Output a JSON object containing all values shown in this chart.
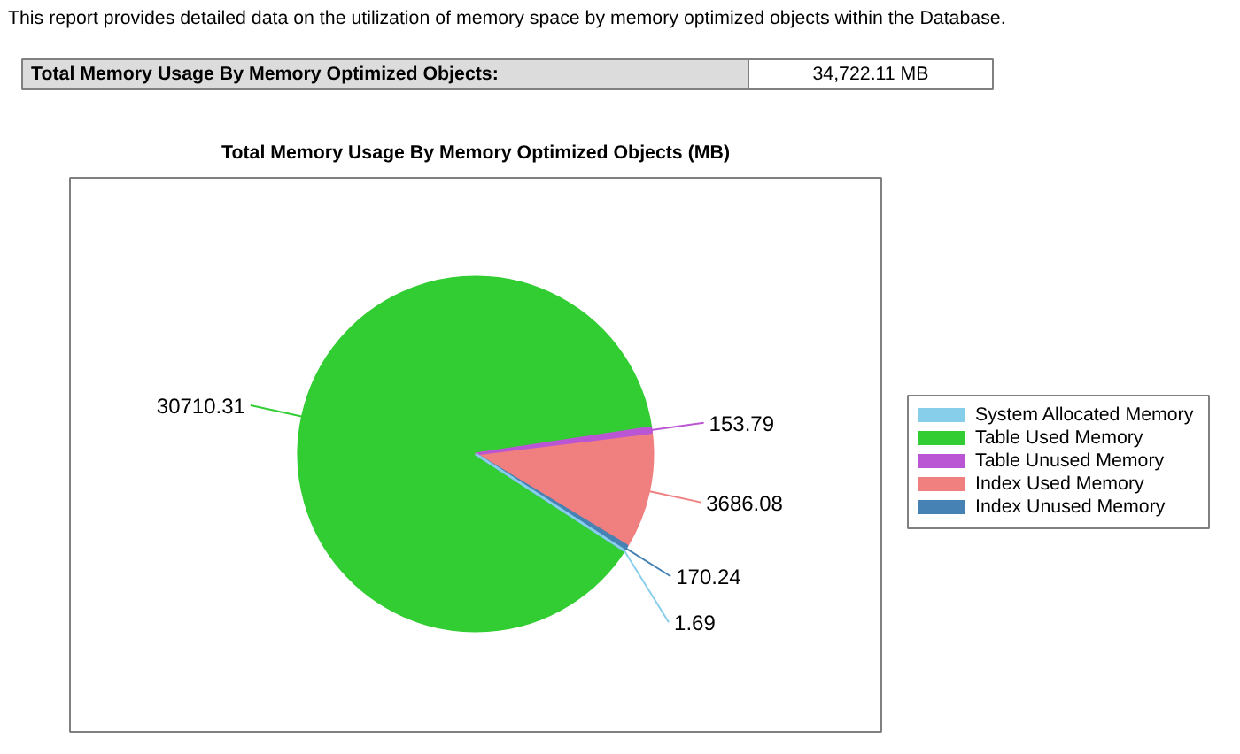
{
  "chart_data": {
    "type": "pie",
    "title": "Total Memory Usage By Memory Optimized Objects (MB)",
    "categories": [
      "System Allocated Memory",
      "Table Used Memory",
      "Table Unused Memory",
      "Index Used Memory",
      "Index Unused Memory"
    ],
    "values": [
      1.69,
      30710.31,
      153.79,
      3686.08,
      170.24
    ],
    "colors": [
      "#87ceeb",
      "#32cd32",
      "#ba55d3",
      "#f08080",
      "#4682b4"
    ],
    "data_labels": true,
    "legend": "right",
    "annotations": [
      "This report provides detailed data on the utilization of memory space by memory optimized objects within the Database.",
      "Total Memory Usage By Memory Optimized Objects:",
      "34,722.11 MB"
    ]
  }
}
